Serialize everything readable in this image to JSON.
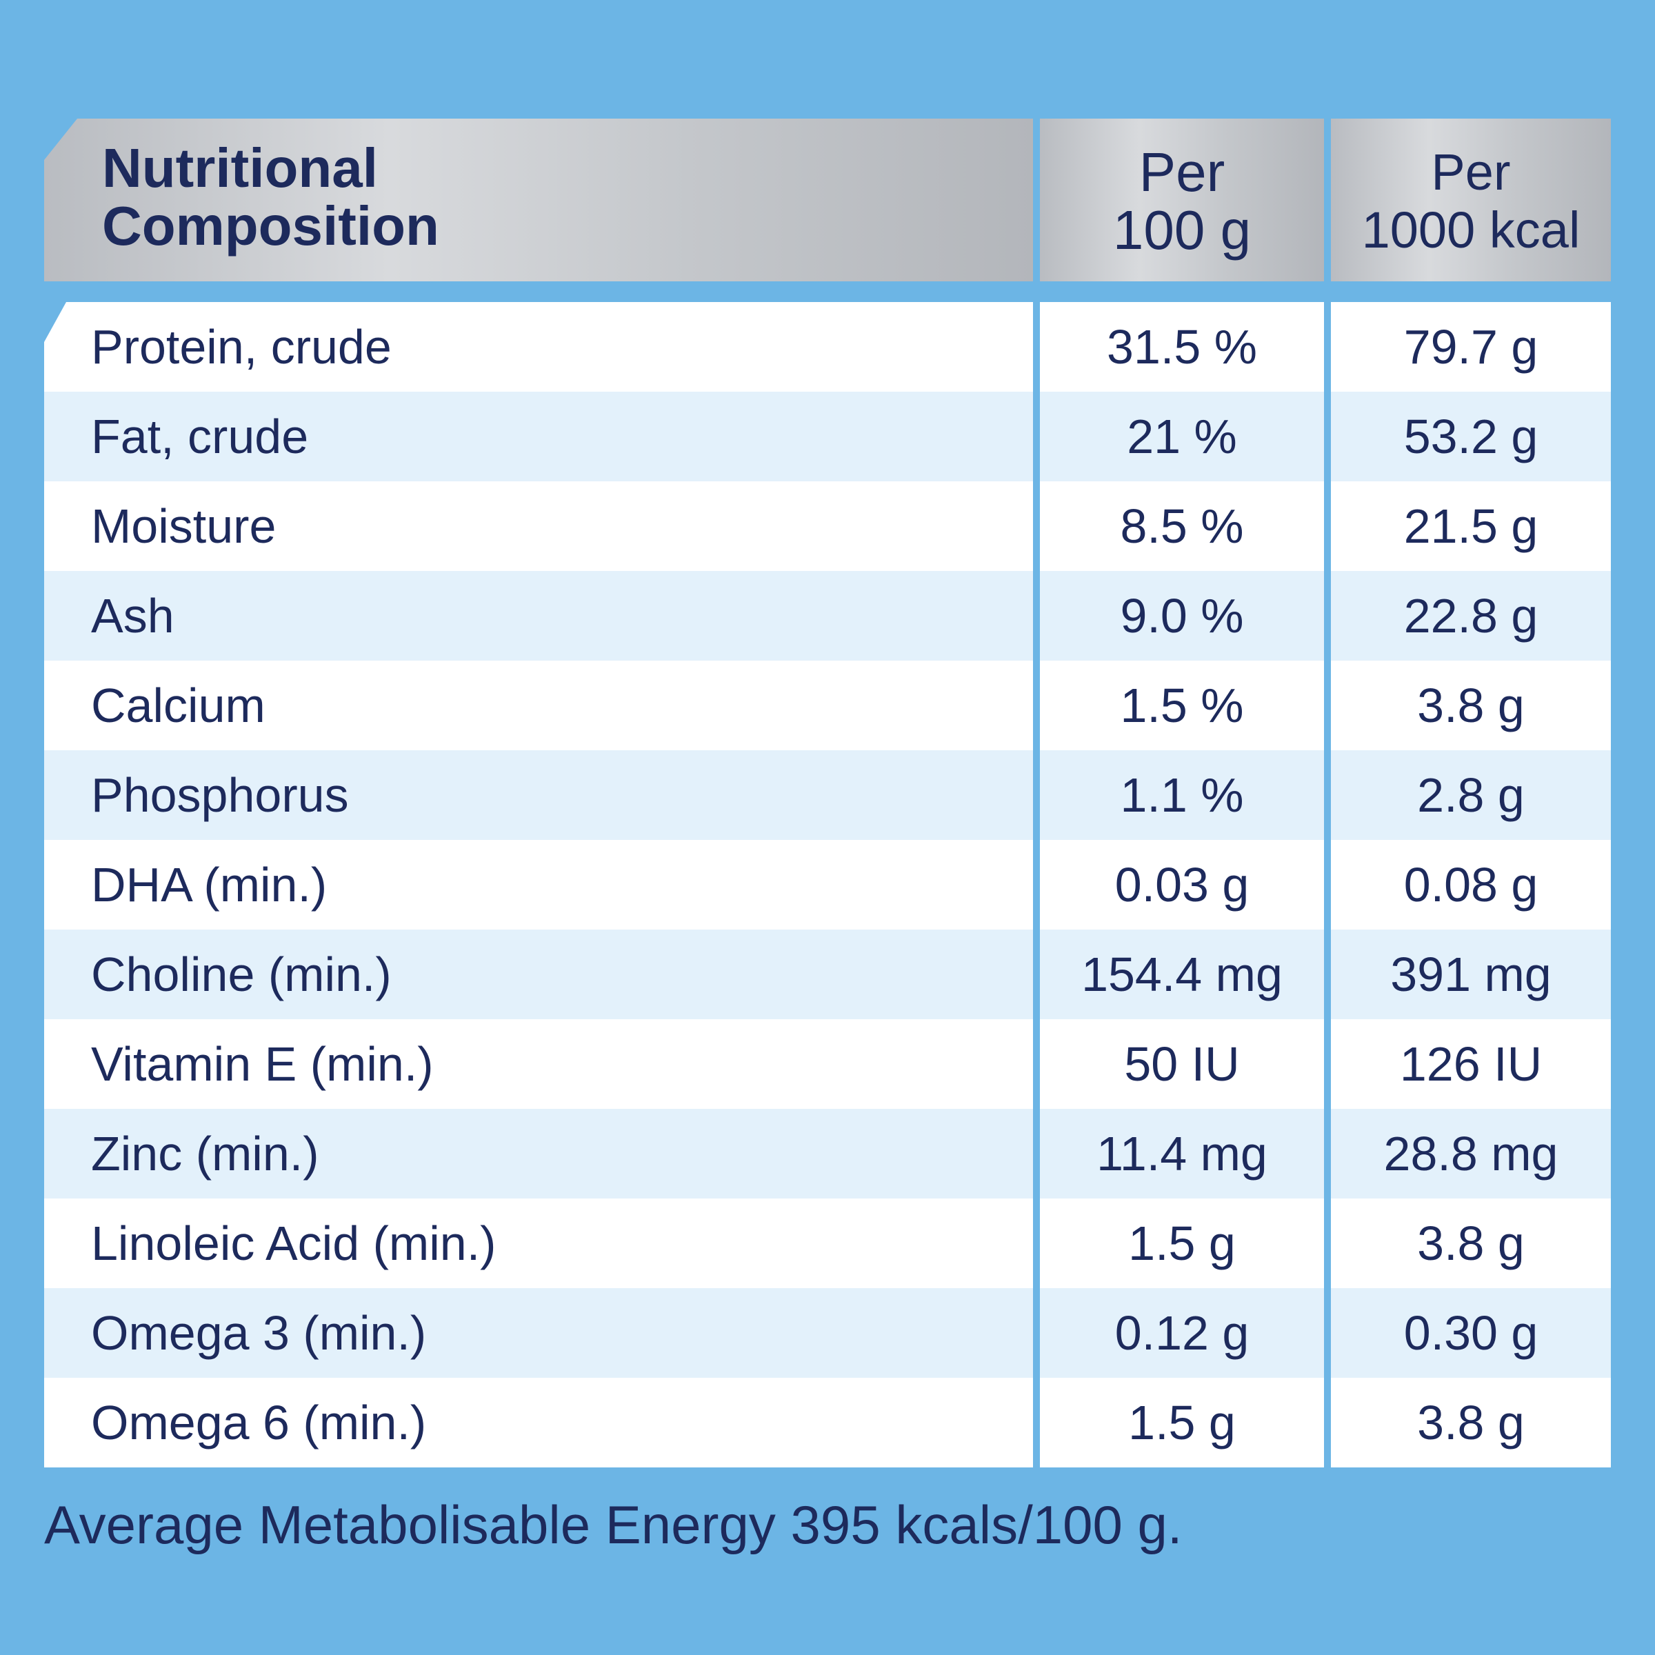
{
  "header": {
    "title": "Nutritional\nComposition",
    "col1": "Per\n100 g",
    "col2": "Per\n1000 kcal"
  },
  "rows": [
    {
      "name": "Protein, crude",
      "per100g": "31.5 %",
      "per1000kcal": "79.7 g"
    },
    {
      "name": "Fat, crude",
      "per100g": "21 %",
      "per1000kcal": "53.2 g"
    },
    {
      "name": "Moisture",
      "per100g": "8.5 %",
      "per1000kcal": "21.5 g"
    },
    {
      "name": "Ash",
      "per100g": "9.0 %",
      "per1000kcal": "22.8 g"
    },
    {
      "name": "Calcium",
      "per100g": "1.5 %",
      "per1000kcal": "3.8 g"
    },
    {
      "name": "Phosphorus",
      "per100g": "1.1 %",
      "per1000kcal": "2.8 g"
    },
    {
      "name": "DHA (min.)",
      "per100g": "0.03 g",
      "per1000kcal": "0.08 g"
    },
    {
      "name": "Choline (min.)",
      "per100g": "154.4 mg",
      "per1000kcal": "391 mg"
    },
    {
      "name": "Vitamin E (min.)",
      "per100g": "50 IU",
      "per1000kcal": "126 IU"
    },
    {
      "name": "Zinc (min.)",
      "per100g": "11.4 mg",
      "per1000kcal": "28.8 mg"
    },
    {
      "name": "Linoleic Acid (min.)",
      "per100g": "1.5 g",
      "per1000kcal": "3.8 g"
    },
    {
      "name": "Omega 3 (min.)",
      "per100g": "0.12 g",
      "per1000kcal": "0.30 g"
    },
    {
      "name": "Omega 6 (min.)",
      "per100g": "1.5 g",
      "per1000kcal": "3.8 g"
    }
  ],
  "footer": "Average Metabolisable Energy 395 kcals/100 g.",
  "colors": {
    "background": "#6cb5e5",
    "text": "#1d2a5c",
    "row_alt": "#e3f1fb",
    "header": "#c4c7cb"
  }
}
